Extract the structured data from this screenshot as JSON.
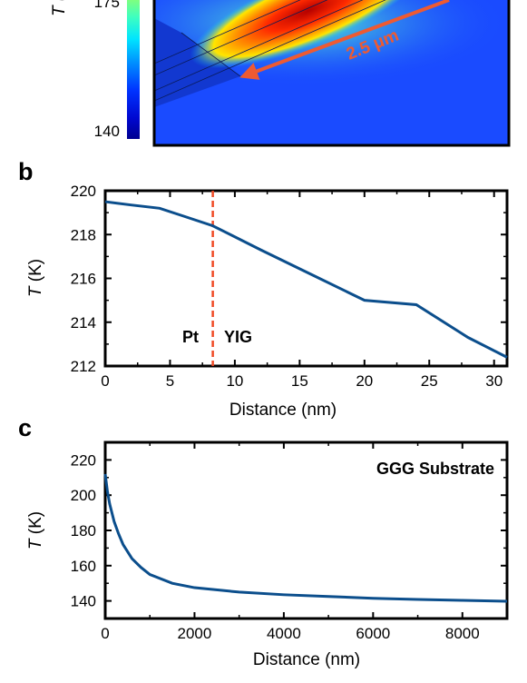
{
  "colors": {
    "series": "#0b4e8c",
    "divider": "#ef4a25",
    "arrow": "#ee5a32",
    "heatmap_background": "#1a4bff"
  },
  "panel_a": {
    "colorbar_tick_175": "175",
    "colorbar_tick_140": "140",
    "colorbar_label": "T (",
    "scale_annotation": "2.5 μm"
  },
  "panel_b": {
    "letter": "b",
    "ylabel_symbol": "T",
    "ylabel_unit": " (K)",
    "xlabel": "Distance (nm)",
    "label_pt": "Pt",
    "label_yig": "YIG"
  },
  "panel_c": {
    "letter": "c",
    "ylabel_symbol": "T",
    "ylabel_unit": " (K)",
    "xlabel": "Distance (nm)",
    "annotation": "GGG Substrate"
  },
  "chart_data": [
    {
      "panel": "b",
      "type": "line",
      "xlabel": "Distance (nm)",
      "ylabel": "T (K)",
      "xlim": [
        0,
        31
      ],
      "ylim": [
        212,
        220
      ],
      "xticks": [
        "0",
        "5",
        "10",
        "15",
        "20",
        "25",
        "30"
      ],
      "yticks": [
        "212",
        "214",
        "216",
        "218",
        "220"
      ],
      "x": [
        0,
        2,
        4.2,
        6,
        8.3,
        12,
        16,
        20,
        24,
        28,
        31
      ],
      "y": [
        219.5,
        219.35,
        219.2,
        218.85,
        218.4,
        217.3,
        216.15,
        215.0,
        214.8,
        213.3,
        212.4
      ],
      "vertical_line_x": 8.3,
      "annotations": [
        "Pt",
        "YIG"
      ]
    },
    {
      "panel": "c",
      "type": "line",
      "xlabel": "Distance (nm)",
      "ylabel": "T (K)",
      "xlim": [
        0,
        9000
      ],
      "ylim": [
        130,
        230
      ],
      "xticks": [
        "0",
        "2000",
        "4000",
        "6000",
        "8000"
      ],
      "yticks": [
        "140",
        "160",
        "180",
        "200",
        "220"
      ],
      "x": [
        0,
        50,
        100,
        200,
        300,
        400,
        600,
        800,
        1000,
        1500,
        2000,
        3000,
        4000,
        5000,
        6000,
        7000,
        8000,
        9000
      ],
      "y": [
        212,
        202,
        195,
        185,
        178,
        172,
        164,
        159,
        155,
        150,
        147.5,
        145,
        143.5,
        142.5,
        141.5,
        140.8,
        140.3,
        139.8
      ],
      "annotations": [
        "GGG Substrate"
      ]
    }
  ]
}
